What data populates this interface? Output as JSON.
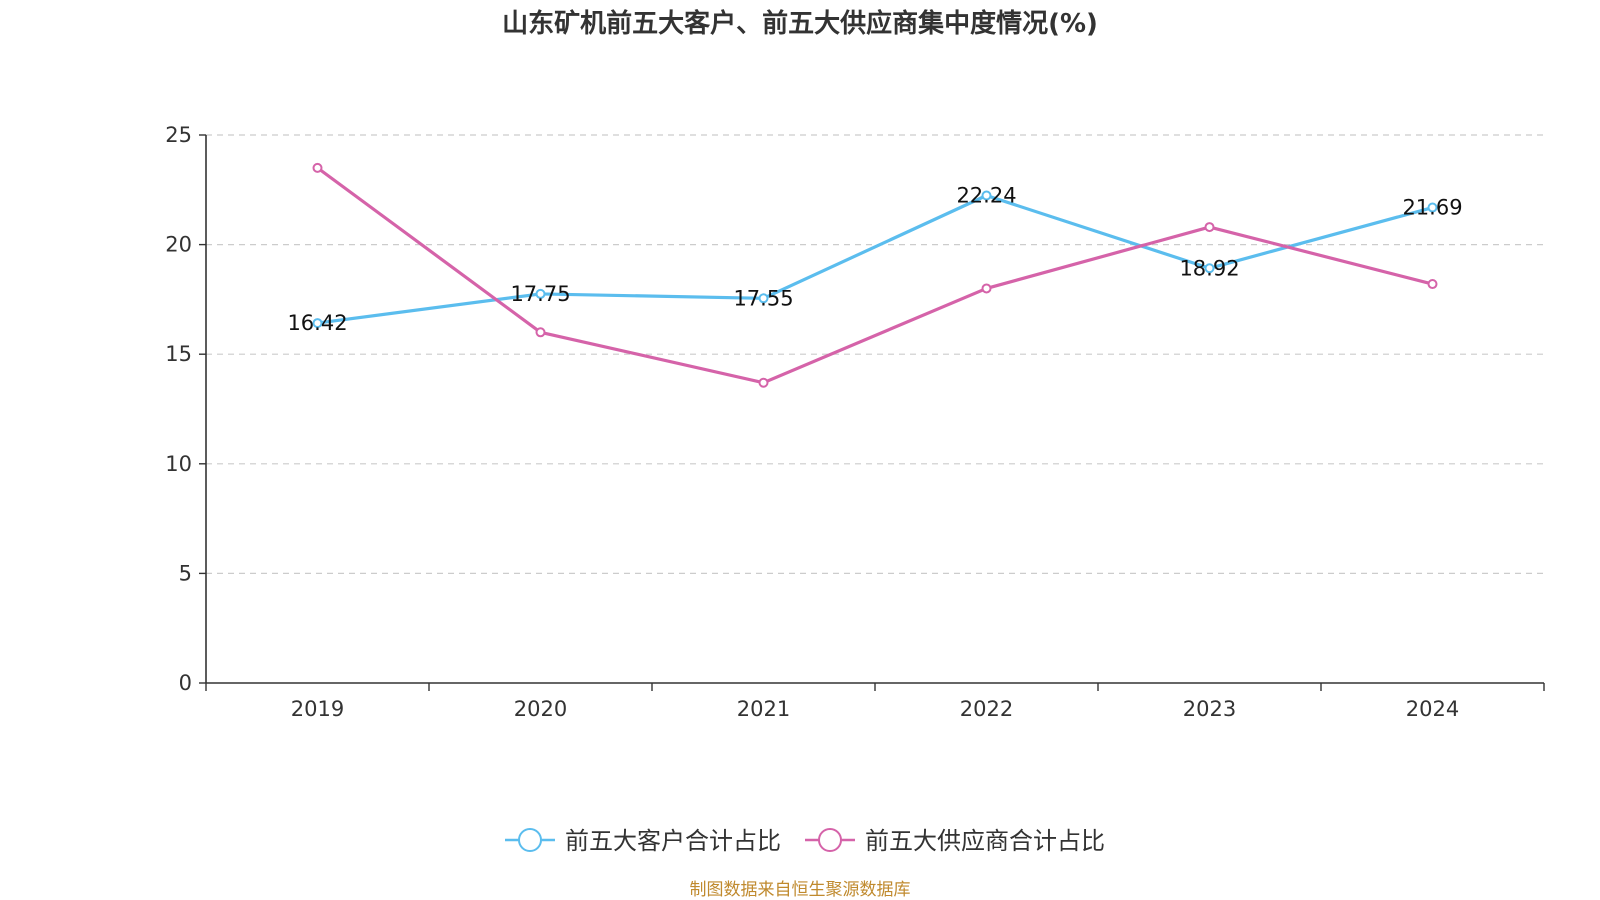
{
  "chart_data": {
    "type": "line",
    "title": "山东矿机前五大客户、前五大供应商集中度情况(%)",
    "categories": [
      "2019",
      "2020",
      "2021",
      "2022",
      "2023",
      "2024"
    ],
    "ylim": [
      0,
      25
    ],
    "yticks": [
      0,
      5,
      10,
      15,
      20,
      25
    ],
    "grid": true,
    "legend_position": "bottom-center",
    "series": [
      {
        "name": "前五大客户合计占比",
        "color": "#5bbdee",
        "values": [
          16.42,
          17.75,
          17.55,
          22.24,
          18.92,
          21.69
        ],
        "labels": [
          "16.42",
          "17.75",
          "17.55",
          "22.24",
          "18.92",
          "21.69"
        ]
      },
      {
        "name": "前五大供应商合计占比",
        "color": "#d563a9",
        "values": [
          23.5,
          16.0,
          13.7,
          18.0,
          20.8,
          18.2
        ]
      }
    ]
  },
  "source_text": "制图数据来自恒生聚源数据库",
  "source_color": "#c08a2e",
  "axis_color": "#333333",
  "grid_color": "#cccccc"
}
